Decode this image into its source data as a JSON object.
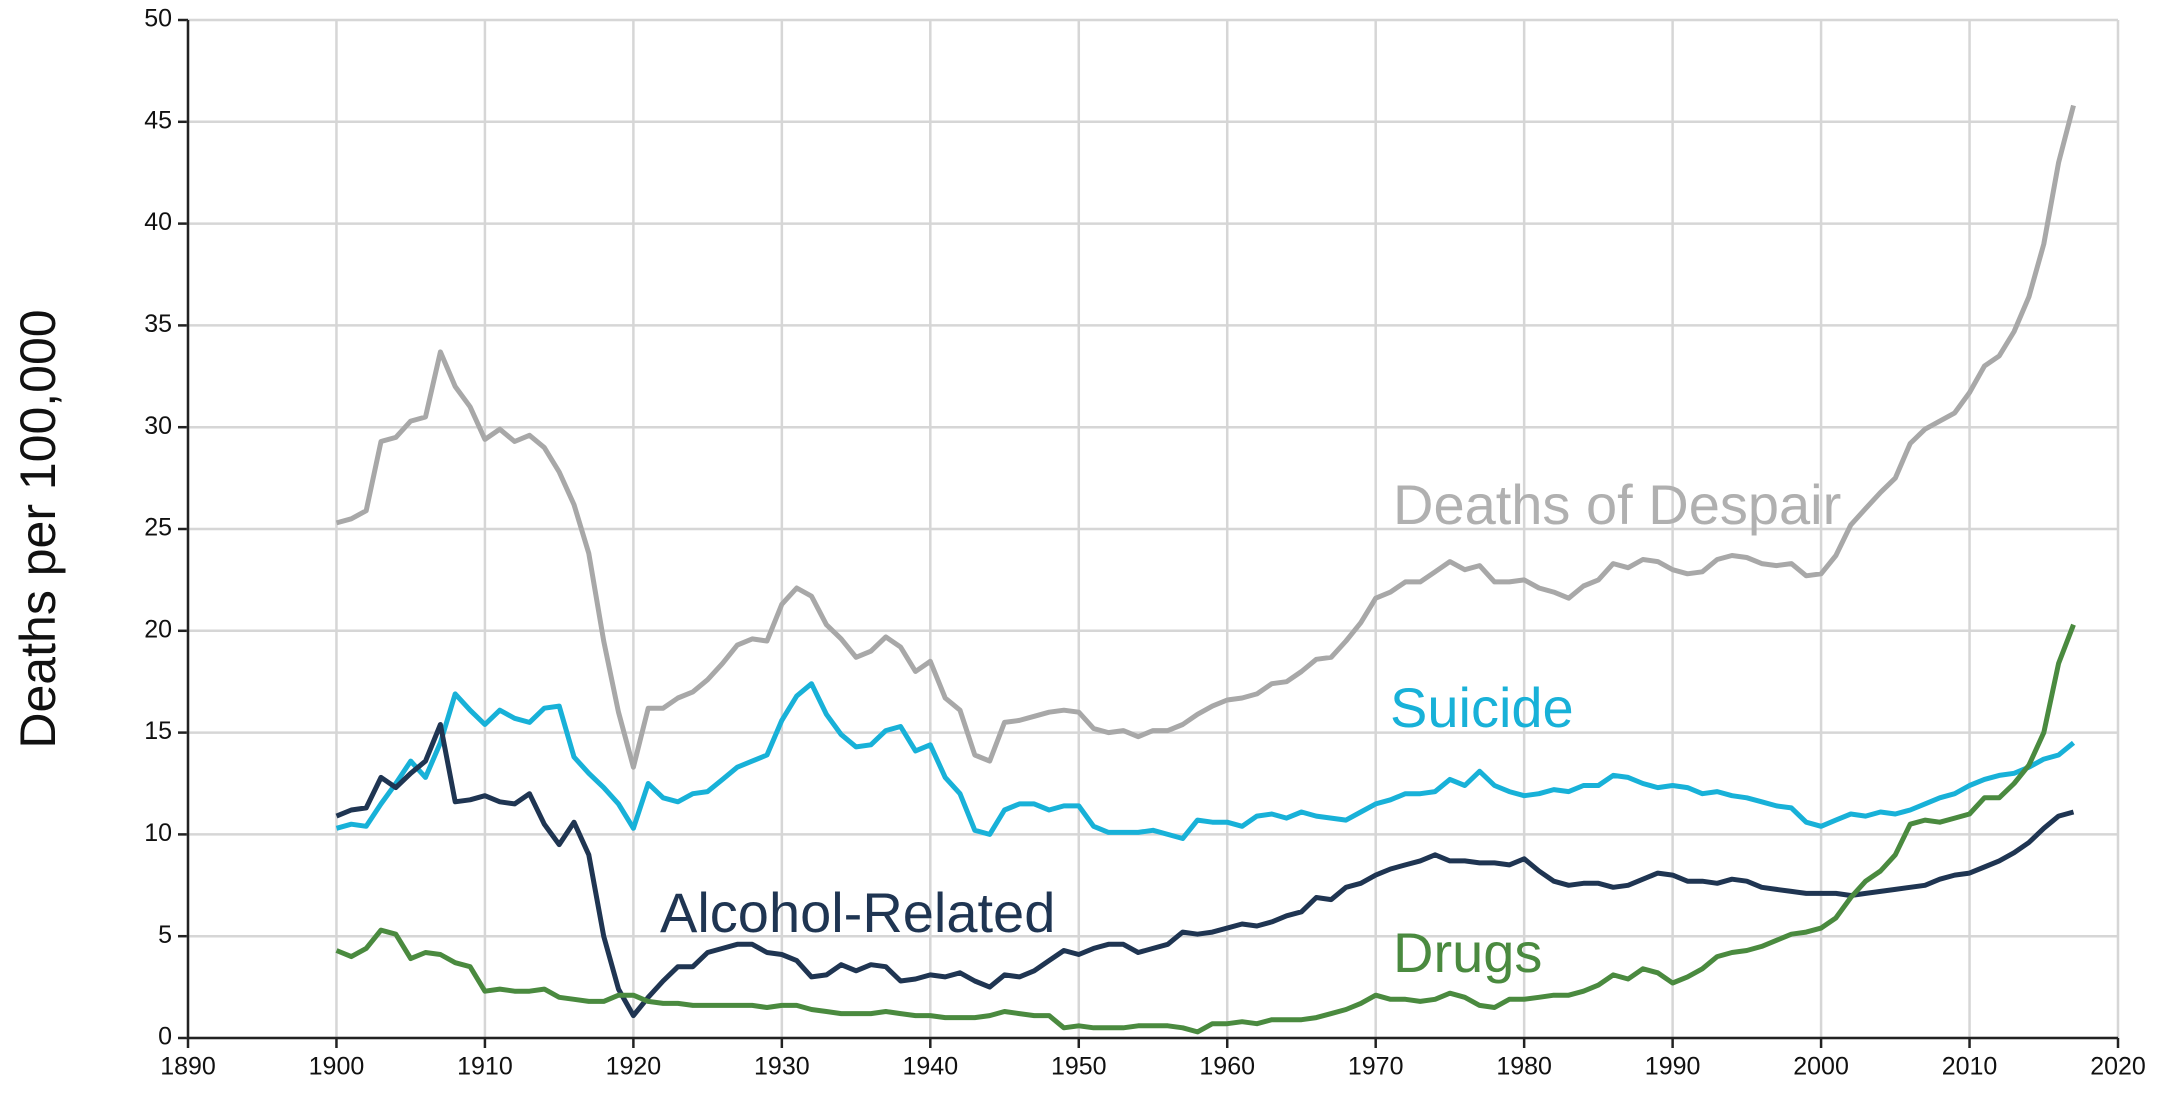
{
  "chart_data": {
    "type": "line",
    "y_label": "Deaths per 100,000",
    "x": [
      1900,
      1901,
      1902,
      1903,
      1904,
      1905,
      1906,
      1907,
      1908,
      1909,
      1910,
      1911,
      1912,
      1913,
      1914,
      1915,
      1916,
      1917,
      1918,
      1919,
      1920,
      1921,
      1922,
      1923,
      1924,
      1925,
      1926,
      1927,
      1928,
      1929,
      1930,
      1931,
      1932,
      1933,
      1934,
      1935,
      1936,
      1937,
      1938,
      1939,
      1940,
      1941,
      1942,
      1943,
      1944,
      1945,
      1946,
      1947,
      1948,
      1949,
      1950,
      1951,
      1952,
      1953,
      1954,
      1955,
      1956,
      1957,
      1958,
      1959,
      1960,
      1961,
      1962,
      1963,
      1964,
      1965,
      1966,
      1967,
      1968,
      1969,
      1970,
      1971,
      1972,
      1973,
      1974,
      1975,
      1976,
      1977,
      1978,
      1979,
      1980,
      1981,
      1982,
      1983,
      1984,
      1985,
      1986,
      1987,
      1988,
      1989,
      1990,
      1991,
      1992,
      1993,
      1994,
      1995,
      1996,
      1997,
      1998,
      1999,
      2000,
      2001,
      2002,
      2003,
      2004,
      2005,
      2006,
      2007,
      2008,
      2009,
      2010,
      2011,
      2012,
      2013,
      2014,
      2015,
      2016,
      2017
    ],
    "series": [
      {
        "name": "Deaths of Despair",
        "color": "#a8a8a8",
        "values": [
          25.3,
          25.5,
          25.9,
          29.3,
          29.5,
          30.3,
          30.5,
          33.7,
          32.0,
          31.0,
          29.4,
          29.9,
          29.3,
          29.6,
          29.0,
          27.8,
          26.2,
          23.8,
          19.5,
          16.0,
          13.3,
          16.2,
          16.2,
          16.7,
          17.0,
          17.6,
          18.4,
          19.3,
          19.6,
          19.5,
          21.3,
          22.1,
          21.7,
          20.3,
          19.6,
          18.7,
          19.0,
          19.7,
          19.2,
          18.0,
          18.5,
          16.7,
          16.1,
          13.9,
          13.6,
          15.5,
          15.6,
          15.8,
          16.0,
          16.1,
          16.0,
          15.2,
          15.0,
          15.1,
          14.8,
          15.1,
          15.1,
          15.4,
          15.9,
          16.3,
          16.6,
          16.7,
          16.9,
          17.4,
          17.5,
          18.0,
          18.6,
          18.7,
          19.5,
          20.4,
          21.6,
          21.9,
          22.4,
          22.4,
          22.9,
          23.4,
          23.0,
          23.2,
          22.4,
          22.4,
          22.5,
          22.1,
          21.9,
          21.6,
          22.2,
          22.5,
          23.3,
          23.1,
          23.5,
          23.4,
          23.0,
          22.8,
          22.9,
          23.5,
          23.7,
          23.6,
          23.3,
          23.2,
          23.3,
          22.7,
          22.8,
          23.7,
          25.2,
          26.0,
          26.8,
          27.5,
          29.2,
          29.9,
          30.3,
          30.7,
          31.7,
          33.0,
          33.5,
          34.7,
          36.4,
          39.0,
          43.0,
          45.8
        ]
      },
      {
        "name": "Suicide",
        "color": "#18b1d8",
        "values": [
          10.3,
          10.5,
          10.4,
          11.5,
          12.5,
          13.6,
          12.8,
          14.5,
          16.9,
          16.1,
          15.4,
          16.1,
          15.7,
          15.5,
          16.2,
          16.3,
          13.8,
          13.0,
          12.3,
          11.5,
          10.3,
          12.5,
          11.8,
          11.6,
          12.0,
          12.1,
          12.7,
          13.3,
          13.6,
          13.9,
          15.6,
          16.8,
          17.4,
          15.9,
          14.9,
          14.3,
          14.4,
          15.1,
          15.3,
          14.1,
          14.4,
          12.8,
          12.0,
          10.2,
          10.0,
          11.2,
          11.5,
          11.5,
          11.2,
          11.4,
          11.4,
          10.4,
          10.1,
          10.1,
          10.1,
          10.2,
          10.0,
          9.8,
          10.7,
          10.6,
          10.6,
          10.4,
          10.9,
          11.0,
          10.8,
          11.1,
          10.9,
          10.8,
          10.7,
          11.1,
          11.5,
          11.7,
          12.0,
          12.0,
          12.1,
          12.7,
          12.4,
          13.1,
          12.4,
          12.1,
          11.9,
          12.0,
          12.2,
          12.1,
          12.4,
          12.4,
          12.9,
          12.8,
          12.5,
          12.3,
          12.4,
          12.3,
          12.0,
          12.1,
          11.9,
          11.8,
          11.6,
          11.4,
          11.3,
          10.6,
          10.4,
          10.7,
          11.0,
          10.9,
          11.1,
          11.0,
          11.2,
          11.5,
          11.8,
          12.0,
          12.4,
          12.7,
          12.9,
          13.0,
          13.3,
          13.7,
          13.9,
          14.5
        ]
      },
      {
        "name": "Alcohol-Related",
        "color": "#1f3552",
        "values": [
          10.9,
          11.2,
          11.3,
          12.8,
          12.3,
          13.0,
          13.6,
          15.4,
          11.6,
          11.7,
          11.9,
          11.6,
          11.5,
          12.0,
          10.5,
          9.5,
          10.6,
          9.0,
          5.0,
          2.4,
          1.1,
          2.0,
          2.8,
          3.5,
          3.5,
          4.2,
          4.4,
          4.6,
          4.6,
          4.2,
          4.1,
          3.8,
          3.0,
          3.1,
          3.6,
          3.3,
          3.6,
          3.5,
          2.8,
          2.9,
          3.1,
          3.0,
          3.2,
          2.8,
          2.5,
          3.1,
          3.0,
          3.3,
          3.8,
          4.3,
          4.1,
          4.4,
          4.6,
          4.6,
          4.2,
          4.4,
          4.6,
          5.2,
          5.1,
          5.2,
          5.4,
          5.6,
          5.5,
          5.7,
          6.0,
          6.2,
          6.9,
          6.8,
          7.4,
          7.6,
          8.0,
          8.3,
          8.5,
          8.7,
          9.0,
          8.7,
          8.7,
          8.6,
          8.6,
          8.5,
          8.8,
          8.2,
          7.7,
          7.5,
          7.6,
          7.6,
          7.4,
          7.5,
          7.8,
          8.1,
          8.0,
          7.7,
          7.7,
          7.6,
          7.8,
          7.7,
          7.4,
          7.3,
          7.2,
          7.1,
          7.1,
          7.1,
          7.0,
          7.1,
          7.2,
          7.3,
          7.4,
          7.5,
          7.8,
          8.0,
          8.1,
          8.4,
          8.7,
          9.1,
          9.6,
          10.3,
          10.9,
          11.1
        ]
      },
      {
        "name": "Drugs",
        "color": "#4a8a3f",
        "values": [
          4.3,
          4.0,
          4.4,
          5.3,
          5.1,
          3.9,
          4.2,
          4.1,
          3.7,
          3.5,
          2.3,
          2.4,
          2.3,
          2.3,
          2.4,
          2.0,
          1.9,
          1.8,
          1.8,
          2.1,
          2.1,
          1.8,
          1.7,
          1.7,
          1.6,
          1.6,
          1.6,
          1.6,
          1.6,
          1.5,
          1.6,
          1.6,
          1.4,
          1.3,
          1.2,
          1.2,
          1.2,
          1.3,
          1.2,
          1.1,
          1.1,
          1.0,
          1.0,
          1.0,
          1.1,
          1.3,
          1.2,
          1.1,
          1.1,
          0.5,
          0.6,
          0.5,
          0.5,
          0.5,
          0.6,
          0.6,
          0.6,
          0.5,
          0.3,
          0.7,
          0.7,
          0.8,
          0.7,
          0.9,
          0.9,
          0.9,
          1.0,
          1.2,
          1.4,
          1.7,
          2.1,
          1.9,
          1.9,
          1.8,
          1.9,
          2.2,
          2.0,
          1.6,
          1.5,
          1.9,
          1.9,
          2.0,
          2.1,
          2.1,
          2.3,
          2.6,
          3.1,
          2.9,
          3.4,
          3.2,
          2.7,
          3.0,
          3.4,
          4.0,
          4.2,
          4.3,
          4.5,
          4.8,
          5.1,
          5.2,
          5.4,
          5.9,
          6.9,
          7.7,
          8.2,
          9.0,
          10.5,
          10.7,
          10.6,
          10.8,
          11.0,
          11.8,
          11.8,
          12.5,
          13.4,
          15.0,
          18.4,
          20.3
        ]
      }
    ],
    "xlim": [
      1890,
      2020
    ],
    "xticks": [
      1890,
      1900,
      1910,
      1920,
      1930,
      1940,
      1950,
      1960,
      1970,
      1980,
      1990,
      2000,
      2010,
      2020
    ],
    "ylim": [
      0,
      50
    ],
    "yticks": [
      0,
      5,
      10,
      15,
      20,
      25,
      30,
      35,
      40,
      45,
      50
    ],
    "grid": true
  }
}
